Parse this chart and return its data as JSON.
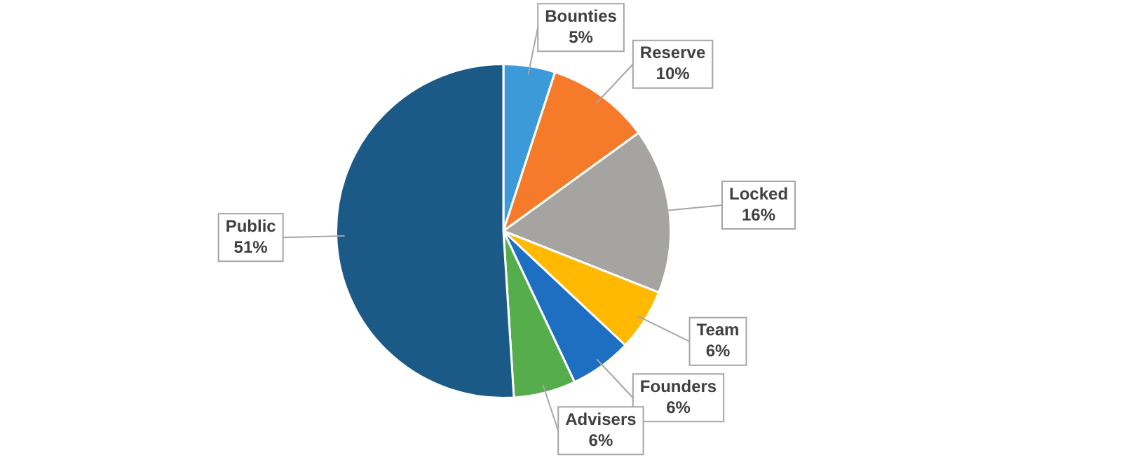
{
  "chart_data": {
    "type": "pie",
    "categories": [
      "Bounties",
      "Reserve",
      "Locked",
      "Team",
      "Founders",
      "Advisers",
      "Public"
    ],
    "values": [
      5,
      10,
      16,
      6,
      6,
      6,
      51
    ],
    "colors": [
      "#3d9ad8",
      "#f57a2a",
      "#a6a4a1",
      "#ffb900",
      "#1e6fc1",
      "#56ad4c",
      "#1b5a86"
    ],
    "value_labels": [
      "5%",
      "10%",
      "16%",
      "6%",
      "6%",
      "6%",
      "51%"
    ],
    "legend": false
  }
}
